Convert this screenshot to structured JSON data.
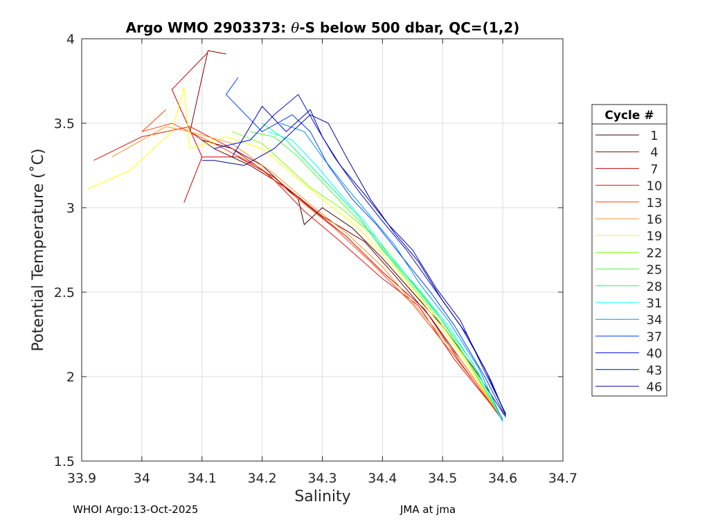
{
  "chart_data": {
    "type": "line",
    "title_prefix": "Argo WMO 2903373: ",
    "title_theta": "θ",
    "title_suffix": "-S below 500 dbar,  QC=(1,2)",
    "xlabel": "Salinity",
    "ylabel": "Potential Temperature (˚C)",
    "xlim": [
      33.9,
      34.7
    ],
    "ylim": [
      1.5,
      4
    ],
    "xticks": [
      "33.9",
      "34",
      "34.1",
      "34.2",
      "34.3",
      "34.4",
      "34.5",
      "34.6",
      "34.7"
    ],
    "yticks": [
      "1.5",
      "2",
      "2.5",
      "3",
      "3.5",
      "4"
    ],
    "grid": true,
    "legend_title": "Cycle #",
    "legend_position": "outside-right",
    "series": [
      {
        "name": "1",
        "color": "#400000",
        "points": [
          [
            34.605,
            1.76
          ],
          [
            34.55,
            2.06
          ],
          [
            34.5,
            2.3
          ],
          [
            34.45,
            2.5
          ],
          [
            34.4,
            2.7
          ],
          [
            34.35,
            2.88
          ],
          [
            34.3,
            3.0
          ],
          [
            34.27,
            2.9
          ],
          [
            34.26,
            3.05
          ],
          [
            34.2,
            3.25
          ],
          [
            34.15,
            3.35
          ],
          [
            34.1,
            3.4
          ]
        ]
      },
      {
        "name": "4",
        "color": "#800000",
        "points": [
          [
            34.6,
            1.75
          ],
          [
            34.54,
            2.05
          ],
          [
            34.48,
            2.35
          ],
          [
            34.42,
            2.6
          ],
          [
            34.37,
            2.8
          ],
          [
            34.3,
            2.95
          ],
          [
            34.24,
            3.12
          ],
          [
            34.18,
            3.25
          ],
          [
            34.12,
            3.35
          ],
          [
            34.08,
            3.45
          ],
          [
            34.11,
            3.93
          ],
          [
            34.14,
            3.91
          ]
        ]
      },
      {
        "name": "7",
        "color": "#cc0000",
        "points": [
          [
            34.6,
            1.74
          ],
          [
            34.53,
            2.08
          ],
          [
            34.47,
            2.4
          ],
          [
            34.4,
            2.62
          ],
          [
            34.34,
            2.83
          ],
          [
            34.28,
            3.0
          ],
          [
            34.22,
            3.18
          ],
          [
            34.16,
            3.3
          ],
          [
            34.1,
            3.3
          ],
          [
            34.07,
            3.03
          ],
          [
            34.1,
            3.3
          ],
          [
            34.05,
            3.7
          ],
          [
            34.11,
            3.92
          ]
        ]
      },
      {
        "name": "10",
        "color": "#e01010",
        "points": [
          [
            34.6,
            1.75
          ],
          [
            34.52,
            2.1
          ],
          [
            34.46,
            2.42
          ],
          [
            34.4,
            2.58
          ],
          [
            34.33,
            2.8
          ],
          [
            34.27,
            2.98
          ],
          [
            34.21,
            3.2
          ],
          [
            34.15,
            3.35
          ],
          [
            34.08,
            3.48
          ],
          [
            34.0,
            3.42
          ],
          [
            33.92,
            3.28
          ]
        ]
      },
      {
        "name": "13",
        "color": "#ff4000",
        "points": [
          [
            34.6,
            1.75
          ],
          [
            34.52,
            2.12
          ],
          [
            34.45,
            2.43
          ],
          [
            34.38,
            2.68
          ],
          [
            34.32,
            2.88
          ],
          [
            34.25,
            3.08
          ],
          [
            34.19,
            3.25
          ],
          [
            34.12,
            3.38
          ],
          [
            34.05,
            3.5
          ],
          [
            34.0,
            3.45
          ],
          [
            34.04,
            3.58
          ]
        ]
      },
      {
        "name": "16",
        "color": "#ff9020",
        "points": [
          [
            34.6,
            1.75
          ],
          [
            34.53,
            2.1
          ],
          [
            34.46,
            2.4
          ],
          [
            34.4,
            2.65
          ],
          [
            34.34,
            2.85
          ],
          [
            34.28,
            3.02
          ],
          [
            34.22,
            3.2
          ],
          [
            34.15,
            3.38
          ],
          [
            34.08,
            3.45
          ],
          [
            34.04,
            3.48
          ],
          [
            33.95,
            3.3
          ]
        ]
      },
      {
        "name": "19",
        "color": "#ffff00",
        "points": [
          [
            34.6,
            1.74
          ],
          [
            34.54,
            2.08
          ],
          [
            34.48,
            2.38
          ],
          [
            34.42,
            2.65
          ],
          [
            34.36,
            2.88
          ],
          [
            34.3,
            3.05
          ],
          [
            34.25,
            3.2
          ],
          [
            34.2,
            3.35
          ],
          [
            34.14,
            3.42
          ],
          [
            34.08,
            3.35
          ],
          [
            34.07,
            3.71
          ],
          [
            34.05,
            3.45
          ],
          [
            33.98,
            3.22
          ],
          [
            33.91,
            3.11
          ]
        ]
      },
      {
        "name": "22",
        "color": "#80ff00",
        "points": [
          [
            34.6,
            1.74
          ],
          [
            34.54,
            2.1
          ],
          [
            34.48,
            2.4
          ],
          [
            34.43,
            2.62
          ],
          [
            34.38,
            2.85
          ],
          [
            34.33,
            3.0
          ],
          [
            34.28,
            3.12
          ],
          [
            34.24,
            3.25
          ],
          [
            34.2,
            3.38
          ],
          [
            34.15,
            3.45
          ]
        ]
      },
      {
        "name": "25",
        "color": "#40ff40",
        "points": [
          [
            34.6,
            1.74
          ],
          [
            34.55,
            2.05
          ],
          [
            34.49,
            2.38
          ],
          [
            34.44,
            2.6
          ],
          [
            34.39,
            2.82
          ],
          [
            34.34,
            3.0
          ],
          [
            34.3,
            3.15
          ],
          [
            34.26,
            3.3
          ],
          [
            34.22,
            3.42
          ],
          [
            34.18,
            3.45
          ]
        ]
      },
      {
        "name": "28",
        "color": "#00ff80",
        "points": [
          [
            34.6,
            1.74
          ],
          [
            34.55,
            2.08
          ],
          [
            34.5,
            2.33
          ],
          [
            34.45,
            2.55
          ],
          [
            34.4,
            2.75
          ],
          [
            34.36,
            2.95
          ],
          [
            34.32,
            3.1
          ],
          [
            34.28,
            3.25
          ],
          [
            34.24,
            3.4
          ],
          [
            34.2,
            3.5
          ]
        ]
      },
      {
        "name": "31",
        "color": "#00ffff",
        "points": [
          [
            34.6,
            1.73
          ],
          [
            34.56,
            2.02
          ],
          [
            34.51,
            2.3
          ],
          [
            34.46,
            2.52
          ],
          [
            34.41,
            2.72
          ],
          [
            34.37,
            2.92
          ],
          [
            34.33,
            3.08
          ],
          [
            34.29,
            3.25
          ],
          [
            34.25,
            3.4
          ],
          [
            34.21,
            3.45
          ]
        ]
      },
      {
        "name": "34",
        "color": "#0090ff",
        "points": [
          [
            34.6,
            1.74
          ],
          [
            34.56,
            2.05
          ],
          [
            34.51,
            2.33
          ],
          [
            34.46,
            2.56
          ],
          [
            34.42,
            2.78
          ],
          [
            34.38,
            2.95
          ],
          [
            34.34,
            3.12
          ],
          [
            34.3,
            3.3
          ],
          [
            34.27,
            3.45
          ],
          [
            34.23,
            3.5
          ]
        ]
      },
      {
        "name": "37",
        "color": "#0040ff",
        "points": [
          [
            34.605,
            1.76
          ],
          [
            34.57,
            2.0
          ],
          [
            34.52,
            2.3
          ],
          [
            34.48,
            2.5
          ],
          [
            34.43,
            2.72
          ],
          [
            34.39,
            2.9
          ],
          [
            34.35,
            3.05
          ],
          [
            34.31,
            3.25
          ],
          [
            34.28,
            3.45
          ],
          [
            34.25,
            3.55
          ],
          [
            34.2,
            3.45
          ],
          [
            34.14,
            3.67
          ],
          [
            34.16,
            3.77
          ]
        ]
      },
      {
        "name": "40",
        "color": "#0010e0",
        "points": [
          [
            34.605,
            1.77
          ],
          [
            34.57,
            2.05
          ],
          [
            34.53,
            2.3
          ],
          [
            34.48,
            2.55
          ],
          [
            34.44,
            2.75
          ],
          [
            34.4,
            2.92
          ],
          [
            34.36,
            3.1
          ],
          [
            34.32,
            3.3
          ],
          [
            34.29,
            3.48
          ],
          [
            34.26,
            3.67
          ],
          [
            34.22,
            3.55
          ],
          [
            34.18,
            3.4
          ],
          [
            34.12,
            3.35
          ]
        ]
      },
      {
        "name": "43",
        "color": "#0000c0",
        "points": [
          [
            34.605,
            1.78
          ],
          [
            34.57,
            2.03
          ],
          [
            34.53,
            2.33
          ],
          [
            34.49,
            2.52
          ],
          [
            34.45,
            2.75
          ],
          [
            34.41,
            2.9
          ],
          [
            34.37,
            3.08
          ],
          [
            34.33,
            3.25
          ],
          [
            34.3,
            3.42
          ],
          [
            34.28,
            3.58
          ],
          [
            34.24,
            3.45
          ],
          [
            34.2,
            3.6
          ],
          [
            34.15,
            3.3
          ]
        ]
      },
      {
        "name": "46",
        "color": "#000090",
        "points": [
          [
            34.605,
            1.77
          ],
          [
            34.58,
            1.98
          ],
          [
            34.54,
            2.25
          ],
          [
            34.5,
            2.45
          ],
          [
            34.46,
            2.68
          ],
          [
            34.42,
            2.85
          ],
          [
            34.38,
            3.05
          ],
          [
            34.34,
            3.3
          ],
          [
            34.31,
            3.5
          ],
          [
            34.28,
            3.55
          ],
          [
            34.22,
            3.35
          ],
          [
            34.17,
            3.25
          ],
          [
            34.12,
            3.28
          ],
          [
            34.1,
            3.28
          ]
        ]
      }
    ]
  },
  "footer": {
    "left": "WHOI Argo:13-Oct-2025",
    "right": "JMA at jma"
  }
}
